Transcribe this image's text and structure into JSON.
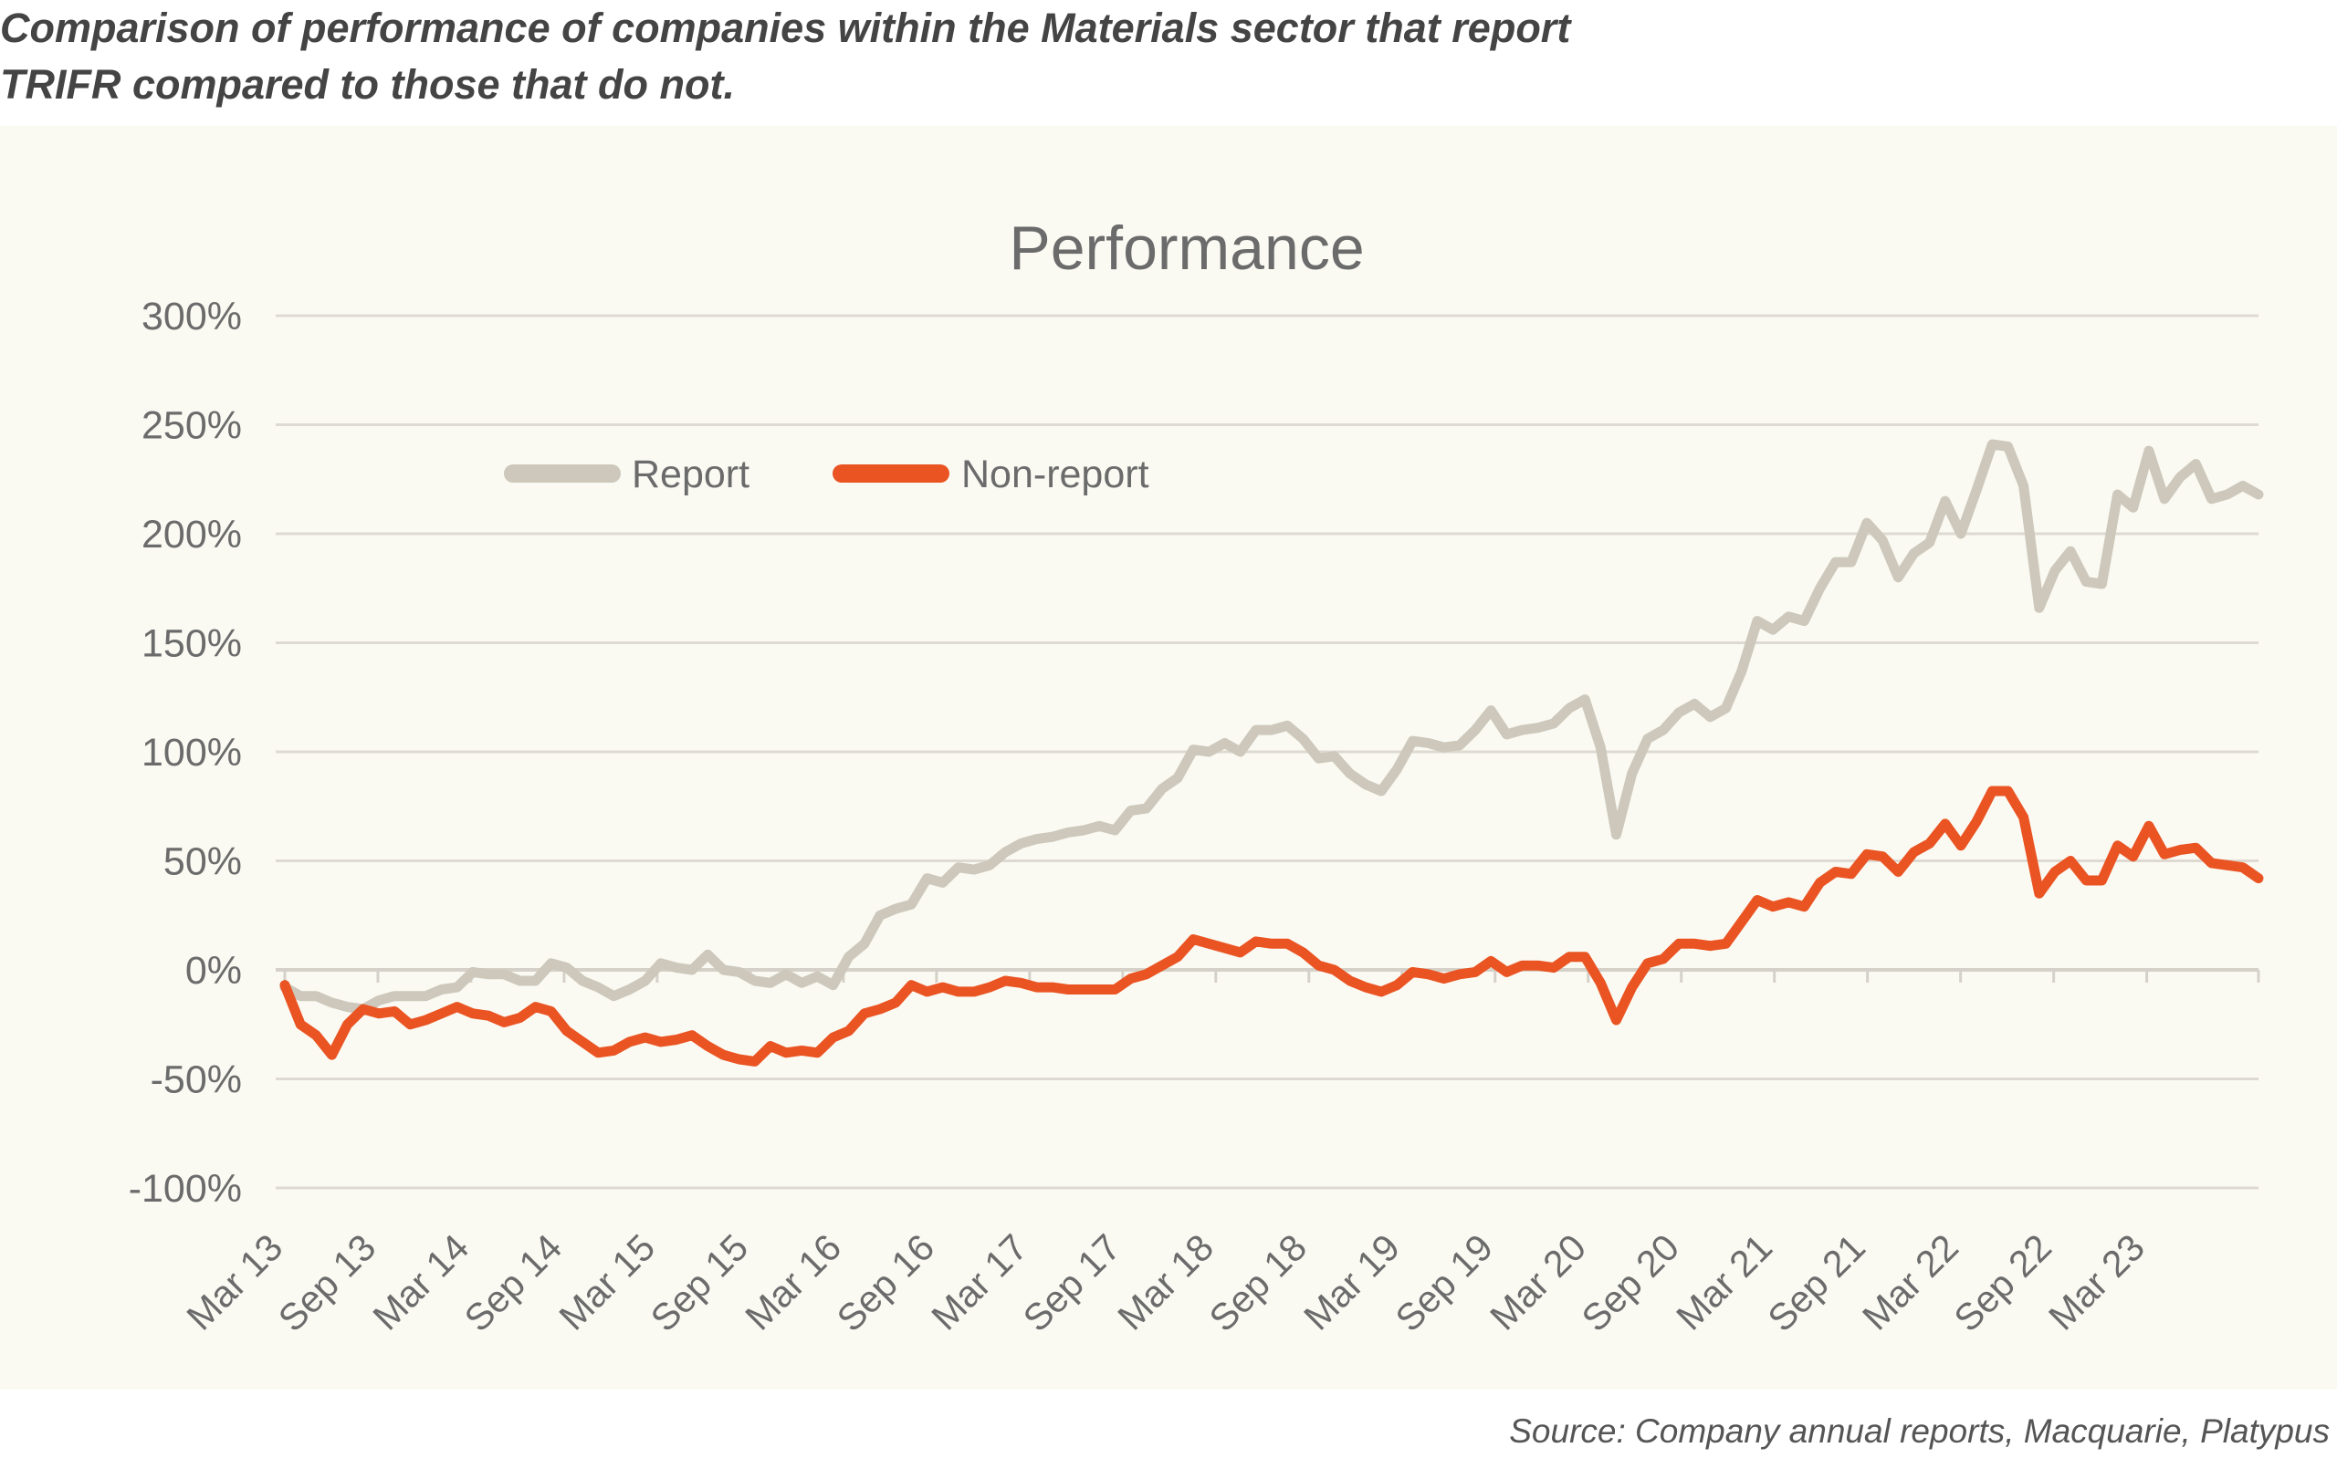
{
  "heading": {
    "line1": "Comparison of performance of companies within the Materials sector that report",
    "line2": "TRIFR compared to those that do not."
  },
  "source": "Source: Company annual reports, Macquarie, Platypus",
  "colors": {
    "report": "#cdc8bb",
    "non_report": "#ea5423",
    "grid": "#dedad2",
    "text": "#6b6b6b",
    "background": "#fafaf3"
  },
  "chart_data": {
    "type": "line",
    "title": "Performance",
    "xlabel": "",
    "ylabel": "",
    "ylim": [
      -100,
      300
    ],
    "y_ticks": [
      300,
      250,
      200,
      150,
      100,
      50,
      0,
      -50,
      -100
    ],
    "y_tick_labels": [
      "300%",
      "250%",
      "200%",
      "150%",
      "100%",
      "50%",
      "0%",
      "-50%",
      "-100%"
    ],
    "x_start": "Mar 13",
    "x_end": "Jul 23",
    "x_tick_labels": [
      "Mar 13",
      "Sep 13",
      "Mar 14",
      "Sep 14",
      "Mar 15",
      "Sep 15",
      "Mar 16",
      "Sep 16",
      "Mar 17",
      "Sep 17",
      "Mar 18",
      "Sep 18",
      "Mar 19",
      "Sep 19",
      "Mar 20",
      "Sep 20",
      "Mar 21",
      "Sep 21",
      "Mar 22",
      "Sep 22",
      "Mar 23"
    ],
    "grid": true,
    "legend": "upper-left",
    "series": [
      {
        "name": "Report",
        "color": "#cdc8bb",
        "values": [
          -8,
          -12,
          -12,
          -15,
          -17,
          -18,
          -14,
          -12,
          -12,
          -12,
          -9,
          -8,
          -1,
          -2,
          -2,
          -5,
          -5,
          3,
          1,
          -5,
          -8,
          -12,
          -9,
          -5,
          3,
          1,
          0,
          7,
          0,
          -1,
          -5,
          -6,
          -2,
          -6,
          -3,
          -7,
          6,
          12,
          25,
          28,
          30,
          42,
          40,
          47,
          46,
          48,
          54,
          58,
          60,
          61,
          63,
          64,
          66,
          64,
          73,
          74,
          83,
          88,
          101,
          100,
          104,
          100,
          110,
          110,
          112,
          106,
          97,
          98,
          90,
          85,
          82,
          92,
          105,
          104,
          102,
          103,
          110,
          119,
          108,
          110,
          111,
          113,
          120,
          124,
          102,
          62,
          90,
          106,
          110,
          118,
          122,
          116,
          120,
          137,
          160,
          156,
          162,
          160,
          175,
          187,
          187,
          205,
          197,
          180,
          191,
          196,
          215,
          200,
          220,
          241,
          240,
          222,
          166,
          183,
          192,
          178,
          177,
          218,
          212,
          238,
          216,
          226,
          232,
          216,
          218,
          222,
          218
        ]
      },
      {
        "name": "Non-report",
        "color": "#ea5423",
        "values": [
          -7,
          -25,
          -30,
          -39,
          -25,
          -18,
          -20,
          -19,
          -25,
          -23,
          -20,
          -17,
          -20,
          -21,
          -24,
          -22,
          -17,
          -19,
          -28,
          -33,
          -38,
          -37,
          -33,
          -31,
          -33,
          -32,
          -30,
          -35,
          -39,
          -41,
          -42,
          -35,
          -38,
          -37,
          -38,
          -31,
          -28,
          -20,
          -18,
          -15,
          -7,
          -10,
          -8,
          -10,
          -10,
          -8,
          -5,
          -6,
          -8,
          -8,
          -9,
          -9,
          -9,
          -9,
          -4,
          -2,
          2,
          6,
          14,
          12,
          10,
          8,
          13,
          12,
          12,
          8,
          2,
          0,
          -5,
          -8,
          -10,
          -7,
          -1,
          -2,
          -4,
          -2,
          -1,
          4,
          -1,
          2,
          2,
          1,
          6,
          6,
          -6,
          -23,
          -8,
          3,
          5,
          12,
          12,
          11,
          12,
          22,
          32,
          29,
          31,
          29,
          40,
          45,
          44,
          53,
          52,
          45,
          54,
          58,
          67,
          57,
          68,
          82,
          82,
          70,
          35,
          45,
          50,
          41,
          41,
          57,
          52,
          66,
          53,
          55,
          56,
          49,
          48,
          47,
          42
        ]
      }
    ]
  }
}
